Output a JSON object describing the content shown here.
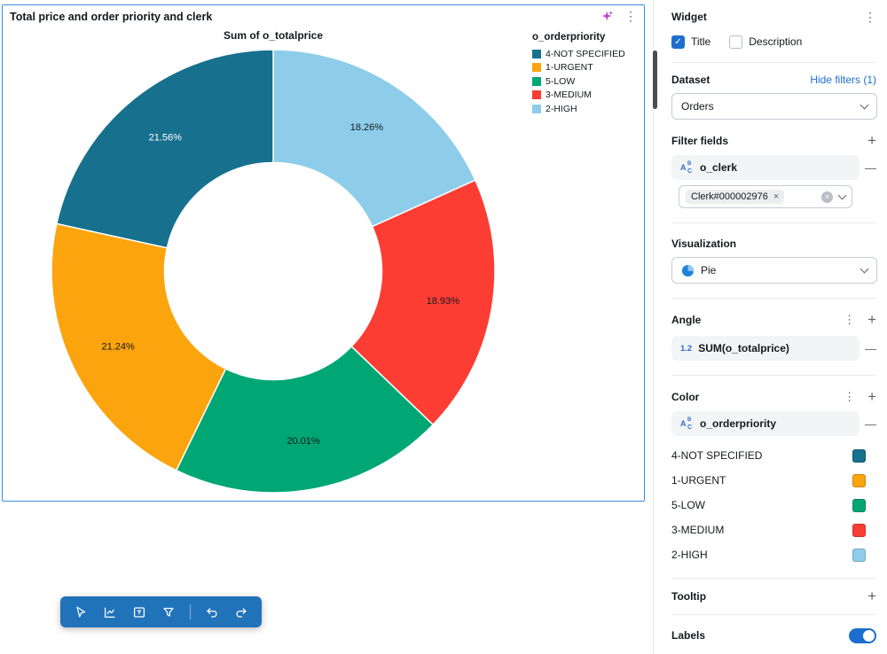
{
  "colors": {
    "accent": "#1d6ece",
    "toolbar_bg": "#2173b9",
    "selection_border": "#3d8ae0"
  },
  "widget": {
    "title": "Total price and order priority and clerk"
  },
  "chart_data": {
    "type": "pie",
    "donut": true,
    "title": "Sum of o_totalprice",
    "legend_title": "o_orderpriority",
    "legend_position": "top-right",
    "inner_radius_ratio": 0.49,
    "start_angle_deg": -90,
    "direction": "clockwise",
    "slices": [
      {
        "name": "2-HIGH",
        "value": 18.26,
        "label": "18.26%",
        "color": "#8ecde9",
        "label_color": "#16191d"
      },
      {
        "name": "3-MEDIUM",
        "value": 18.93,
        "label": "18.93%",
        "color": "#fb3d34",
        "label_color": "#16191d"
      },
      {
        "name": "5-LOW",
        "value": 20.01,
        "label": "20.01%",
        "color": "#00a673",
        "label_color": "#16191d"
      },
      {
        "name": "1-URGENT",
        "value": 21.24,
        "label": "21.24%",
        "color": "#fca40e",
        "label_color": "#16191d"
      },
      {
        "name": "4-NOT SPECIFIED",
        "value": 21.56,
        "label": "21.56%",
        "color": "#17708e",
        "label_color": "#ffffff"
      }
    ],
    "legend_order": [
      "4-NOT SPECIFIED",
      "1-URGENT",
      "5-LOW",
      "3-MEDIUM",
      "2-HIGH"
    ]
  },
  "toolbar": {
    "buttons": [
      "pointer",
      "line-chart",
      "text-box",
      "filter",
      "separator",
      "undo",
      "redo"
    ]
  },
  "panel": {
    "widget_section": {
      "title": "Widget",
      "checkboxes": [
        {
          "label": "Title",
          "checked": true
        },
        {
          "label": "Description",
          "checked": false
        }
      ]
    },
    "dataset": {
      "label": "Dataset",
      "hide_filters_link": "Hide filters (1)",
      "selected": "Orders"
    },
    "filter_fields": {
      "label": "Filter fields",
      "field": "o_clerk",
      "value_tag": "Clerk#000002976"
    },
    "visualization": {
      "label": "Visualization",
      "selected": "Pie"
    },
    "angle": {
      "label": "Angle",
      "field_icon": "1.2",
      "field": "SUM(o_totalprice)"
    },
    "color": {
      "label": "Color",
      "field": "o_orderpriority",
      "items": [
        {
          "label": "4-NOT SPECIFIED",
          "color": "#17708e"
        },
        {
          "label": "1-URGENT",
          "color": "#fca40e"
        },
        {
          "label": "5-LOW",
          "color": "#00a673"
        },
        {
          "label": "3-MEDIUM",
          "color": "#fb3d34"
        },
        {
          "label": "2-HIGH",
          "color": "#8ecde9"
        }
      ]
    },
    "tooltip": {
      "label": "Tooltip"
    },
    "labels": {
      "label": "Labels",
      "enabled": true
    }
  }
}
